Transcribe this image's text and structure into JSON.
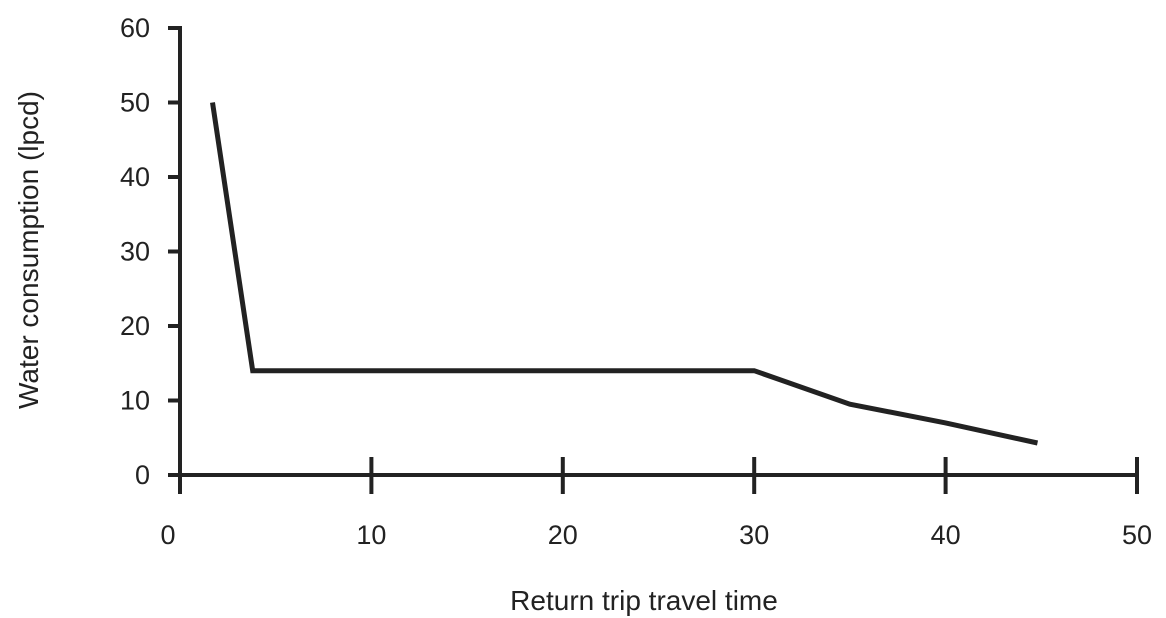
{
  "chart_data": {
    "type": "line",
    "title": "",
    "xlabel": "Return trip travel time",
    "ylabel": "Water consumption (lpcd)",
    "xlim": [
      0,
      50
    ],
    "ylim": [
      0,
      60
    ],
    "x_ticks": [
      0,
      10,
      20,
      30,
      40,
      50
    ],
    "x_tick_labels": [
      "0",
      "10",
      "20",
      "30",
      "40",
      "50"
    ],
    "y_ticks": [
      0,
      10,
      20,
      30,
      40,
      50,
      60
    ],
    "y_tick_labels": [
      "0",
      "10",
      "20",
      "30",
      "40",
      "50",
      "60"
    ],
    "grid": false,
    "series": [
      {
        "x": [
          1.7,
          3.8,
          30,
          35,
          40,
          44.8
        ],
        "y": [
          50,
          14,
          14,
          9.5,
          7,
          4.3
        ]
      }
    ],
    "line_color": "#222222",
    "axis_color": "#222222"
  }
}
